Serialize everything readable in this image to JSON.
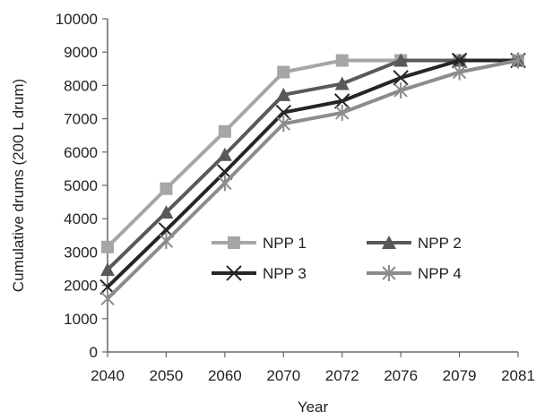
{
  "chart_data": {
    "type": "line",
    "title": "",
    "xlabel": "Year",
    "ylabel": "Cumulative drums (200 L drum)",
    "categories": [
      "2040",
      "2050",
      "2060",
      "2070",
      "2072",
      "2076",
      "2079",
      "2081"
    ],
    "ylim": [
      0,
      10000
    ],
    "yticks": [
      "0",
      "1000",
      "2000",
      "3000",
      "4000",
      "5000",
      "6000",
      "7000",
      "8000",
      "9000",
      "10000"
    ],
    "grid": false,
    "legend_position": "lower-right inside plot",
    "series": [
      {
        "name": "NPP 1",
        "values": [
          3150,
          4900,
          6620,
          8400,
          8750,
          8750,
          8750,
          8750
        ],
        "color": "#a6a6a6",
        "marker": "square"
      },
      {
        "name": "NPP 2",
        "values": [
          2470,
          4190,
          5920,
          7720,
          8050,
          8750,
          8750,
          8750
        ],
        "color": "#595959",
        "marker": "triangle"
      },
      {
        "name": "NPP 3",
        "values": [
          1950,
          3660,
          5400,
          7190,
          7530,
          8230,
          8750,
          8750
        ],
        "color": "#262626",
        "marker": "x"
      },
      {
        "name": "NPP 4",
        "values": [
          1600,
          3330,
          5070,
          6850,
          7180,
          7850,
          8400,
          8750
        ],
        "color": "#8c8c8c",
        "marker": "star"
      }
    ]
  }
}
